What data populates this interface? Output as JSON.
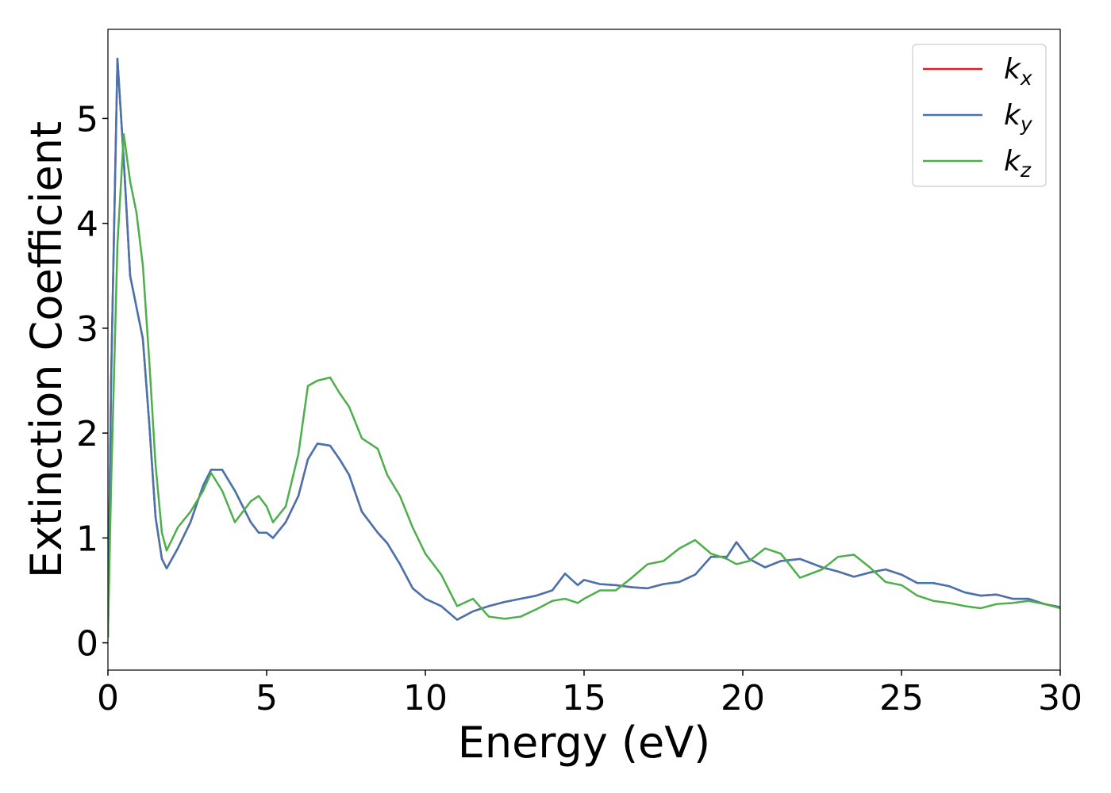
{
  "chart_data": {
    "type": "line",
    "xlabel": "Energy (eV)",
    "ylabel": "Extinction Coefficient",
    "x": [
      0,
      0.1,
      0.3,
      0.5,
      0.7,
      0.9,
      1.1,
      1.3,
      1.5,
      1.7,
      1.85,
      2.2,
      2.6,
      3.0,
      3.25,
      3.6,
      4.0,
      4.5,
      4.75,
      5.0,
      5.2,
      5.6,
      6.0,
      6.3,
      6.6,
      7.0,
      7.3,
      7.6,
      8.0,
      8.5,
      8.8,
      9.2,
      9.6,
      10.0,
      10.5,
      11.0,
      11.5,
      12.0,
      12.5,
      13.0,
      13.5,
      14.0,
      14.4,
      14.8,
      15.0,
      15.5,
      16.0,
      16.5,
      17.0,
      17.5,
      18.0,
      18.5,
      19.0,
      19.5,
      19.8,
      20.2,
      20.7,
      21.2,
      21.8,
      22.5,
      23.0,
      23.5,
      24.0,
      24.5,
      25.0,
      25.5,
      26.0,
      26.5,
      27.0,
      27.5,
      28.0,
      28.5,
      29.0,
      29.5,
      30.0
    ],
    "series": [
      {
        "name": "kx",
        "color": "#e41a1c",
        "values": [
          0.05,
          2.5,
          5.57,
          4.6,
          3.5,
          3.2,
          2.9,
          2.1,
          1.2,
          0.8,
          0.71,
          0.9,
          1.15,
          1.5,
          1.65,
          1.65,
          1.45,
          1.15,
          1.05,
          1.05,
          1.0,
          1.15,
          1.4,
          1.75,
          1.9,
          1.88,
          1.75,
          1.6,
          1.25,
          1.05,
          0.95,
          0.75,
          0.52,
          0.42,
          0.35,
          0.22,
          0.3,
          0.35,
          0.39,
          0.42,
          0.45,
          0.5,
          0.66,
          0.55,
          0.6,
          0.56,
          0.55,
          0.53,
          0.52,
          0.56,
          0.58,
          0.65,
          0.82,
          0.82,
          0.96,
          0.8,
          0.72,
          0.78,
          0.8,
          0.72,
          0.68,
          0.63,
          0.67,
          0.7,
          0.65,
          0.57,
          0.57,
          0.54,
          0.48,
          0.45,
          0.46,
          0.42,
          0.42,
          0.37,
          0.34
        ]
      },
      {
        "name": "ky",
        "color": "#4575b0",
        "values": [
          0.05,
          2.5,
          5.57,
          4.6,
          3.5,
          3.2,
          2.9,
          2.1,
          1.2,
          0.8,
          0.71,
          0.9,
          1.15,
          1.5,
          1.65,
          1.65,
          1.45,
          1.15,
          1.05,
          1.05,
          1.0,
          1.15,
          1.4,
          1.75,
          1.9,
          1.88,
          1.75,
          1.6,
          1.25,
          1.05,
          0.95,
          0.75,
          0.52,
          0.42,
          0.35,
          0.22,
          0.3,
          0.35,
          0.39,
          0.42,
          0.45,
          0.5,
          0.66,
          0.55,
          0.6,
          0.56,
          0.55,
          0.53,
          0.52,
          0.56,
          0.58,
          0.65,
          0.82,
          0.82,
          0.96,
          0.8,
          0.72,
          0.78,
          0.8,
          0.72,
          0.68,
          0.63,
          0.67,
          0.7,
          0.65,
          0.57,
          0.57,
          0.54,
          0.48,
          0.45,
          0.46,
          0.42,
          0.42,
          0.37,
          0.34
        ]
      },
      {
        "name": "kz",
        "color": "#4daf4a",
        "values": [
          0.05,
          1.5,
          3.8,
          4.85,
          4.4,
          4.1,
          3.6,
          2.7,
          1.7,
          1.05,
          0.88,
          1.1,
          1.25,
          1.45,
          1.62,
          1.45,
          1.15,
          1.35,
          1.4,
          1.3,
          1.15,
          1.3,
          1.8,
          2.45,
          2.5,
          2.53,
          2.38,
          2.25,
          1.95,
          1.85,
          1.6,
          1.4,
          1.1,
          0.85,
          0.65,
          0.35,
          0.42,
          0.25,
          0.23,
          0.25,
          0.32,
          0.4,
          0.42,
          0.38,
          0.42,
          0.5,
          0.5,
          0.62,
          0.75,
          0.78,
          0.9,
          0.98,
          0.85,
          0.8,
          0.75,
          0.78,
          0.9,
          0.85,
          0.62,
          0.7,
          0.82,
          0.84,
          0.72,
          0.58,
          0.55,
          0.45,
          0.4,
          0.38,
          0.35,
          0.33,
          0.37,
          0.38,
          0.4,
          0.37,
          0.33
        ]
      }
    ],
    "xlim": [
      0,
      30
    ],
    "xticks": [
      0,
      5,
      10,
      15,
      20,
      25,
      30
    ],
    "ylim": [
      -0.26,
      5.85
    ],
    "yticks": [
      0,
      1,
      2,
      3,
      4,
      5
    ],
    "legend": "upper right"
  }
}
